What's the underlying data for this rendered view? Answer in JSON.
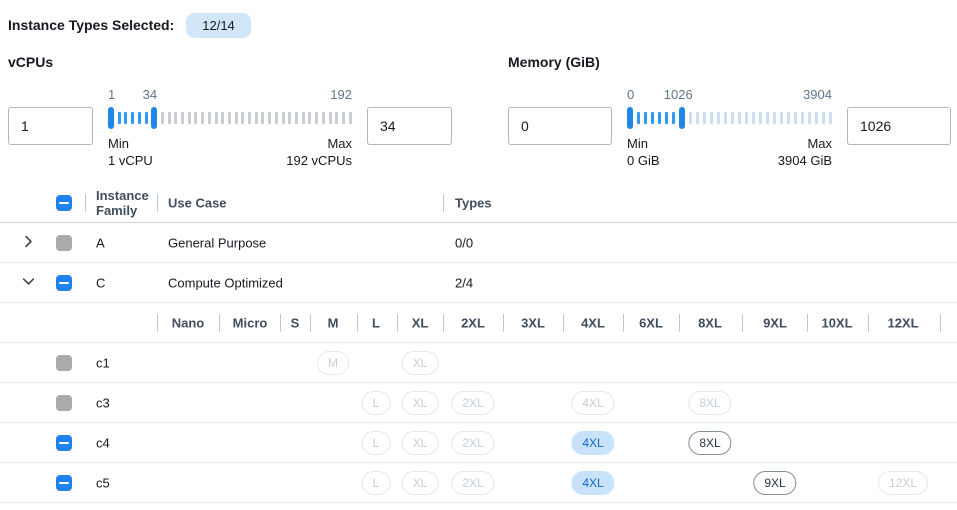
{
  "header": {
    "label": "Instance Types Selected:",
    "badge": "12/14"
  },
  "colors": {
    "accent_blue": "#1f87e8",
    "active_tick": "#2d9cf0",
    "selected_pill_bg": "#c8e2fa",
    "selected_pill_text": "#1569c8",
    "badge_bg": "#d2e6fa"
  },
  "filters": {
    "vcpus": {
      "title": "vCPUs",
      "from_value": "1",
      "to_value": "34",
      "scale_low": "1",
      "scale_mid": "34",
      "scale_high": "192",
      "min_label": "Min",
      "min_sub": "1 vCPU",
      "max_label": "Max",
      "max_sub": "192 vCPUs",
      "slider": {
        "min": 1,
        "max": 192,
        "low": 1,
        "high": 34
      }
    },
    "memory": {
      "title": "Memory (GiB)",
      "from_value": "0",
      "to_value": "1026",
      "scale_low": "0",
      "scale_mid": "1026",
      "scale_high": "3904",
      "min_label": "Min",
      "min_sub": "0 GiB",
      "max_label": "Max",
      "max_sub": "3904 GiB",
      "slider": {
        "min": 0,
        "max": 3904,
        "low": 0,
        "high": 1026
      }
    }
  },
  "table": {
    "columns": {
      "family": "Instance Family",
      "use_case": "Use Case",
      "types": "Types"
    },
    "size_columns": [
      "Nano",
      "Micro",
      "S",
      "M",
      "L",
      "XL",
      "2XL",
      "3XL",
      "4XL",
      "6XL",
      "8XL",
      "9XL",
      "10XL",
      "12XL"
    ],
    "header_checkbox": "indeterminate",
    "families": [
      {
        "name": "A",
        "use_case": "General Purpose",
        "types": "0/0",
        "expanded": false,
        "checkbox": "disabled",
        "instances": []
      },
      {
        "name": "C",
        "use_case": "Compute Optimized",
        "types": "2/4",
        "expanded": true,
        "checkbox": "indeterminate",
        "instances": [
          {
            "name": "c1",
            "checkbox": "disabled",
            "sizes": [
              {
                "size": "M",
                "state": "disabled"
              },
              {
                "size": "XL",
                "state": "disabled"
              }
            ]
          },
          {
            "name": "c3",
            "checkbox": "disabled",
            "sizes": [
              {
                "size": "L",
                "state": "disabled"
              },
              {
                "size": "XL",
                "state": "disabled"
              },
              {
                "size": "2XL",
                "state": "disabled"
              },
              {
                "size": "4XL",
                "state": "disabled"
              },
              {
                "size": "8XL",
                "state": "disabled"
              }
            ]
          },
          {
            "name": "c4",
            "checkbox": "indeterminate",
            "sizes": [
              {
                "size": "L",
                "state": "disabled"
              },
              {
                "size": "XL",
                "state": "disabled"
              },
              {
                "size": "2XL",
                "state": "disabled"
              },
              {
                "size": "4XL",
                "state": "selected"
              },
              {
                "size": "8XL",
                "state": "enabled"
              }
            ]
          },
          {
            "name": "c5",
            "checkbox": "indeterminate",
            "sizes": [
              {
                "size": "L",
                "state": "disabled"
              },
              {
                "size": "XL",
                "state": "disabled"
              },
              {
                "size": "2XL",
                "state": "disabled"
              },
              {
                "size": "4XL",
                "state": "selected"
              },
              {
                "size": "9XL",
                "state": "enabled"
              },
              {
                "size": "12XL",
                "state": "disabled"
              }
            ]
          }
        ]
      }
    ]
  }
}
